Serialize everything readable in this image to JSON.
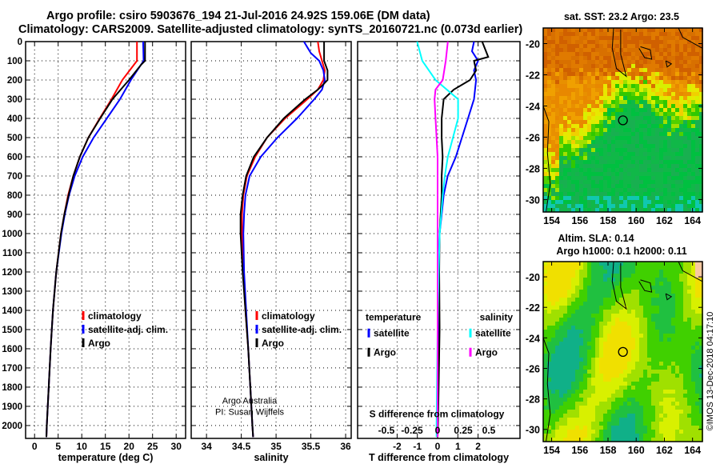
{
  "title": {
    "line1": "Argo profile: csiro 5903676_194 21-Jul-2016 24.92S 159.06E (DM data)",
    "line2": "Climatology: CARS2009. Satellite-adjusted climatology: synTS_20160721.nc (0.073d earlier)"
  },
  "watermark": "©IMOS 13-Dec-2018 04:17:10",
  "colors": {
    "climatology": "#ff0000",
    "satellite": "#0000ff",
    "argo": "#000000",
    "sal_satellite": "#00ffff",
    "sal_argo": "#ff00ff"
  },
  "chart_data": [
    {
      "type": "line",
      "name": "temperature",
      "xlabel": "temperature (deg C)",
      "ylabel": "depth",
      "xticks": [
        0,
        5,
        10,
        15,
        20,
        25,
        30
      ],
      "yticks": [
        0,
        100,
        200,
        300,
        400,
        500,
        600,
        700,
        800,
        900,
        1000,
        1100,
        1200,
        1300,
        1400,
        1500,
        1600,
        1700,
        1800,
        1900,
        2000
      ],
      "xlim": [
        -1.9,
        32
      ],
      "ylim": [
        2067,
        0
      ],
      "grid": true,
      "legend": [
        "climatology",
        "satellite-adj. clim.",
        "Argo"
      ],
      "series": [
        {
          "name": "climatology",
          "depth": [
            0,
            100,
            200,
            300,
            400,
            500,
            600,
            700,
            800,
            900,
            1000,
            1200,
            1400,
            1600,
            1800,
            2000,
            2060
          ],
          "values": [
            21.7,
            21.7,
            18.6,
            16.3,
            13.8,
            11.4,
            9.6,
            8.2,
            7.1,
            6.3,
            5.6,
            4.6,
            3.9,
            3.4,
            3.0,
            2.6,
            2.5
          ]
        },
        {
          "name": "satellite-adj. clim.",
          "depth": [
            0,
            100,
            200,
            300,
            400,
            500,
            600,
            700,
            800,
            900,
            1000,
            1200,
            1400,
            1600,
            1800,
            2000,
            2060
          ],
          "values": [
            23.0,
            23.1,
            20.4,
            18.1,
            15.3,
            12.5,
            10.2,
            8.5,
            7.3,
            6.4,
            5.7,
            4.6,
            3.9,
            3.4,
            3.0,
            2.6,
            2.5
          ]
        },
        {
          "name": "Argo",
          "depth": [
            0,
            100,
            120,
            200,
            300,
            400,
            500,
            600,
            700,
            800,
            900,
            1000,
            1200,
            1400,
            1600,
            1800,
            2000,
            2060
          ],
          "values": [
            23.4,
            23.4,
            22.6,
            20.0,
            16.5,
            13.9,
            11.4,
            9.6,
            8.2,
            7.2,
            6.3,
            5.6,
            4.6,
            3.9,
            3.4,
            3.0,
            2.6,
            2.5
          ]
        }
      ]
    },
    {
      "type": "line",
      "name": "salinity",
      "xlabel": "salinity",
      "xticks": [
        34,
        34.5,
        35,
        35.5,
        36
      ],
      "xlim": [
        33.78,
        36.08
      ],
      "ylim": [
        2067,
        0
      ],
      "grid": true,
      "legend": [
        "climatology",
        "satellite-adj. clim.",
        "Argo"
      ],
      "annotation": [
        "Argo Australia",
        "PI: Susan Wijffels"
      ],
      "series": [
        {
          "name": "climatology",
          "depth": [
            0,
            50,
            100,
            150,
            200,
            250,
            300,
            400,
            500,
            600,
            700,
            800,
            900,
            1000,
            1200,
            1400,
            1600,
            1800,
            2000,
            2060
          ],
          "values": [
            35.6,
            35.62,
            35.66,
            35.7,
            35.68,
            35.6,
            35.45,
            35.13,
            34.87,
            34.7,
            34.58,
            34.53,
            34.51,
            34.51,
            34.53,
            34.56,
            34.6,
            34.63,
            34.66,
            34.67
          ]
        },
        {
          "name": "satellite-adj. clim.",
          "depth": [
            0,
            30,
            60,
            100,
            150,
            200,
            250,
            300,
            400,
            500,
            600,
            700,
            800,
            900,
            1000,
            1200,
            1400,
            1600,
            1800,
            2000,
            2060
          ],
          "values": [
            35.4,
            35.45,
            35.5,
            35.62,
            35.68,
            35.7,
            35.66,
            35.55,
            35.3,
            35.02,
            34.78,
            34.62,
            34.56,
            34.54,
            34.53,
            34.54,
            34.57,
            34.6,
            34.63,
            34.66,
            34.67
          ]
        },
        {
          "name": "Argo",
          "depth": [
            0,
            100,
            150,
            200,
            230,
            250,
            300,
            400,
            500,
            600,
            700,
            800,
            900,
            1000,
            1200,
            1400,
            1600,
            1800,
            2000,
            2060
          ],
          "values": [
            35.69,
            35.69,
            35.74,
            35.74,
            35.66,
            35.6,
            35.42,
            35.11,
            34.87,
            34.68,
            34.57,
            34.52,
            34.49,
            34.49,
            34.52,
            34.56,
            34.6,
            34.63,
            34.66,
            34.67
          ]
        }
      ]
    },
    {
      "type": "line",
      "name": "difference",
      "xlabel": "T difference from climatology",
      "x2label": "S difference from climatology",
      "xticks": [
        -2,
        -1,
        0,
        1,
        2
      ],
      "x2ticks": [
        -0.5,
        -0.25,
        0,
        0.25,
        0.5
      ],
      "x2ticklabels": [
        "-0.5",
        "-0.25",
        "0",
        "0.25",
        "0.5"
      ],
      "xlim": [
        -3.4,
        4.7
      ],
      "x2lim": [
        -1.5,
        1.5
      ],
      "ylim": [
        2067,
        0
      ],
      "grid": true,
      "legend": {
        "temperature_title": "temperature",
        "salinity_title": "salinity",
        "t_items": [
          "satellite",
          "Argo"
        ],
        "s_items": [
          "satellite",
          "Argo"
        ]
      },
      "series": [
        {
          "name": "T satellite",
          "axis": "T",
          "depth": [
            0,
            50,
            100,
            150,
            200,
            300,
            400,
            500,
            600,
            700,
            800,
            900,
            1000,
            1200,
            1500,
            2000,
            2060
          ],
          "values": [
            1.8,
            1.7,
            2.0,
            1.8,
            1.9,
            1.8,
            1.5,
            1.2,
            0.9,
            0.5,
            0.3,
            0.2,
            0.1,
            0.05,
            0.03,
            0.0,
            0.0
          ]
        },
        {
          "name": "T Argo",
          "axis": "T",
          "depth": [
            0,
            80,
            100,
            150,
            200,
            250,
            300,
            400,
            500,
            600,
            700,
            800,
            900,
            1000,
            1200,
            1500,
            2000,
            2060
          ],
          "values": [
            2.2,
            2.5,
            1.8,
            1.9,
            1.6,
            0.8,
            0.3,
            0.2,
            0.2,
            0.25,
            0.2,
            0.2,
            0.15,
            0.1,
            0.08,
            0.1,
            0.02,
            0.0
          ]
        },
        {
          "name": "S satellite",
          "axis": "S",
          "depth": [
            0,
            100,
            200,
            300,
            400,
            500,
            600,
            700,
            800,
            1000,
            1200,
            1500,
            2000,
            2060
          ],
          "values": [
            -0.2,
            -0.15,
            -0.02,
            0.2,
            0.2,
            0.15,
            0.1,
            0.07,
            0.05,
            0.02,
            0.01,
            0.0,
            -0.01,
            -0.01
          ]
        },
        {
          "name": "S Argo",
          "axis": "S",
          "depth": [
            0,
            100,
            200,
            250,
            300,
            400,
            500,
            600,
            800,
            1000,
            1500,
            2000,
            2060
          ],
          "values": [
            0.1,
            0.08,
            0.05,
            -0.02,
            -0.03,
            -0.02,
            -0.01,
            0.0,
            0.0,
            0.0,
            0.0,
            0.0,
            0.0
          ]
        }
      ]
    },
    {
      "type": "heatmap",
      "name": "sst-map",
      "title": "sat. SST: 23.2 Argo: 23.5",
      "xticks": [
        154,
        156,
        158,
        160,
        162,
        164
      ],
      "yticks": [
        -20,
        -22,
        -24,
        -26,
        -28,
        -30
      ],
      "xlim": [
        153.4,
        164.7
      ],
      "ylim": [
        -30.8,
        -19.0
      ],
      "marker": {
        "lon": 159.06,
        "lat": -24.92
      }
    },
    {
      "type": "heatmap",
      "name": "sla-map",
      "title": "Altim. SLA: 0.14",
      "subtitle": "Argo h1000: 0.1 h2000: 0.11",
      "xticks": [
        154,
        156,
        158,
        160,
        162,
        164
      ],
      "yticks": [
        -20,
        -22,
        -24,
        -26,
        -28,
        -30
      ],
      "xlim": [
        153.4,
        164.7
      ],
      "ylim": [
        -30.8,
        -19.0
      ],
      "marker": {
        "lon": 159.06,
        "lat": -24.92
      }
    }
  ]
}
